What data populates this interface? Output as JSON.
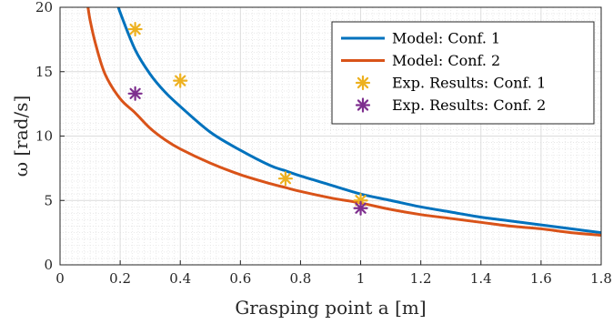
{
  "chart_data": {
    "type": "line",
    "xlabel": "Grasping point a [m]",
    "ylabel": "ω [rad/s]",
    "xlim": [
      0,
      1.8
    ],
    "ylim": [
      0,
      20
    ],
    "xticks": [
      "0",
      "0.2",
      "0.4",
      "0.6",
      "0.8",
      "1",
      "1.2",
      "1.4",
      "1.6",
      "1.8"
    ],
    "yticks": [
      "0",
      "5",
      "10",
      "15",
      "20"
    ],
    "grid": true,
    "minor_grid": true,
    "legend_position": "top-right",
    "series": [
      {
        "name": "Model: Conf. 1",
        "kind": "line",
        "color": "#0072BD",
        "x": [
          0.19,
          0.2,
          0.25,
          0.3,
          0.35,
          0.4,
          0.5,
          0.6,
          0.7,
          0.75,
          0.8,
          0.9,
          1.0,
          1.1,
          1.2,
          1.3,
          1.4,
          1.5,
          1.6,
          1.7,
          1.8
        ],
        "y": [
          20.4,
          19.6,
          16.7,
          14.8,
          13.4,
          12.3,
          10.3,
          8.9,
          7.7,
          7.3,
          6.9,
          6.2,
          5.5,
          5.0,
          4.5,
          4.1,
          3.7,
          3.4,
          3.1,
          2.8,
          2.5
        ]
      },
      {
        "name": "Model: Conf. 2",
        "kind": "line",
        "color": "#D95319",
        "x": [
          0.09,
          0.1,
          0.12,
          0.15,
          0.2,
          0.25,
          0.3,
          0.35,
          0.4,
          0.5,
          0.6,
          0.7,
          0.75,
          0.8,
          0.9,
          1.0,
          1.1,
          1.2,
          1.3,
          1.4,
          1.5,
          1.6,
          1.7,
          1.8
        ],
        "y": [
          20.5,
          19.0,
          17.0,
          14.8,
          12.9,
          11.8,
          10.6,
          9.7,
          9.0,
          7.9,
          7.0,
          6.3,
          6.0,
          5.7,
          5.2,
          4.8,
          4.3,
          3.9,
          3.6,
          3.3,
          3.0,
          2.8,
          2.5,
          2.3
        ]
      },
      {
        "name": "Exp. Results: Conf. 1",
        "kind": "marker",
        "marker": "asterisk",
        "color": "#EDB120",
        "x": [
          0.25,
          0.4,
          0.75,
          1.0
        ],
        "y": [
          18.3,
          14.3,
          6.7,
          5.0
        ]
      },
      {
        "name": "Exp. Results: Conf. 2",
        "kind": "marker",
        "marker": "asterisk",
        "color": "#7E2F8E",
        "x": [
          0.25,
          1.0
        ],
        "y": [
          13.3,
          4.4
        ]
      }
    ]
  }
}
